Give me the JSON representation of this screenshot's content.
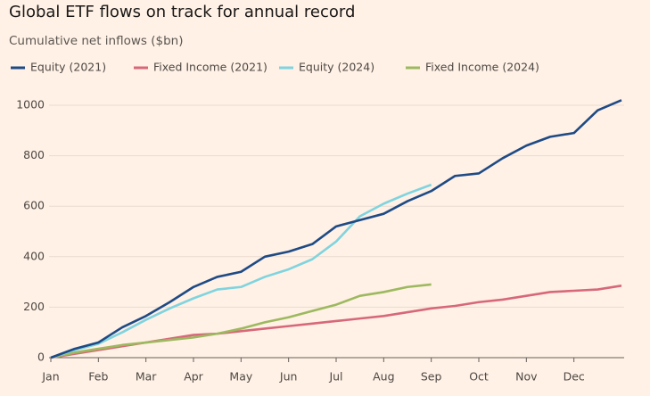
{
  "chart_data": {
    "type": "line",
    "title": "Global ETF flows on track for annual record",
    "subtitle": "Cumulative net inflows ($bn)",
    "categories": [
      "Jan",
      null,
      "Feb",
      null,
      "Mar",
      null,
      "Apr",
      null,
      "May",
      null,
      "Jun",
      null,
      "Jul",
      null,
      "Aug",
      null,
      "Sep",
      null,
      "Oct",
      null,
      "Nov",
      null,
      "Dec",
      null,
      null
    ],
    "series": [
      {
        "name": "Equity (2021)",
        "color": "#1e4a85",
        "values": [
          0,
          35,
          60,
          120,
          165,
          220,
          280,
          320,
          340,
          400,
          420,
          450,
          520,
          545,
          570,
          620,
          660,
          720,
          730,
          790,
          840,
          875,
          890,
          980,
          1020
        ]
      },
      {
        "name": "Fixed Income (2021)",
        "color": "#d7687a",
        "values": [
          0,
          15,
          30,
          45,
          60,
          75,
          90,
          95,
          105,
          115,
          125,
          135,
          145,
          155,
          165,
          180,
          195,
          205,
          220,
          230,
          245,
          260,
          265,
          270,
          285
        ]
      },
      {
        "name": "Equity (2024)",
        "color": "#7fd4df",
        "values": [
          0,
          30,
          55,
          100,
          150,
          195,
          235,
          270,
          280,
          320,
          350,
          390,
          460,
          560,
          610,
          650,
          685,
          null,
          null,
          null,
          null,
          null,
          null,
          null,
          null
        ]
      },
      {
        "name": "Fixed Income (2024)",
        "color": "#9cb95f",
        "values": [
          0,
          20,
          35,
          50,
          60,
          70,
          80,
          95,
          115,
          140,
          160,
          185,
          210,
          245,
          260,
          280,
          290,
          null,
          null,
          null,
          null,
          null,
          null,
          null,
          null
        ]
      }
    ],
    "ylim": [
      0,
      1060
    ],
    "yticks": [
      0,
      200,
      400,
      600,
      800,
      1000
    ],
    "grid": true
  }
}
